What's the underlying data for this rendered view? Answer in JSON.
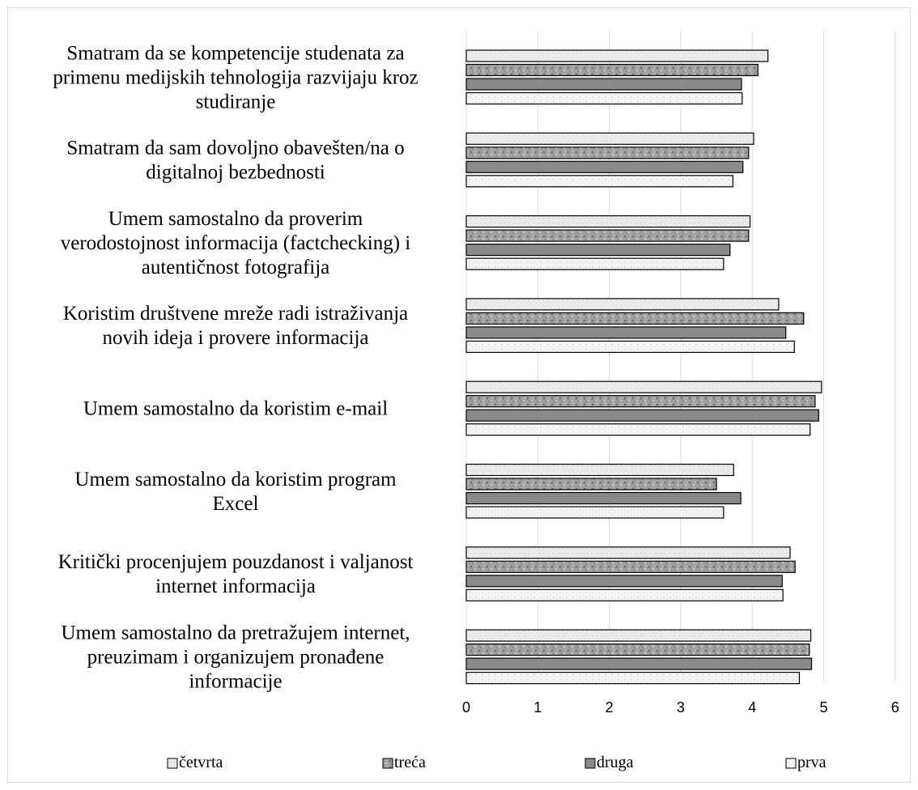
{
  "chart_data": {
    "type": "bar",
    "orientation": "horizontal",
    "categories": [
      [
        "Smatram da se kompetencije studenata za",
        "primenu medijskih tehnologija razvijaju kroz",
        "studiranje"
      ],
      [
        "Smatram da sam dovoljno obavešten/na o",
        "digitalnoj bezbednosti"
      ],
      [
        "Umem samostalno da proverim",
        "verodostojnost informacija (factchecking) i",
        "autentičnost fotografija"
      ],
      [
        "Koristim društvene mreže radi istraživanja",
        "novih ideja i provere informacija"
      ],
      [
        "Umem samostalno da koristim e-mail"
      ],
      [
        "Umem samostalno da koristim program",
        "Excel"
      ],
      [
        "Kritički procenjujem pouzdanost i valjanost",
        "internet informacija"
      ],
      [
        "Umem samostalno da pretražujem internet,",
        "preuzimam i organizujem pronađene",
        "informacije"
      ]
    ],
    "series": [
      {
        "name": "četvrta",
        "color": "#e8e8e8",
        "pattern": "light",
        "values": [
          4.22,
          4.02,
          3.97,
          4.37,
          4.97,
          3.74,
          4.53,
          4.82
        ]
      },
      {
        "name": "treća",
        "color": "#a6a6a6",
        "pattern": "textured",
        "values": [
          4.08,
          3.95,
          3.95,
          4.72,
          4.88,
          3.5,
          4.6,
          4.8
        ]
      },
      {
        "name": "druga",
        "color": "#8c8c8c",
        "pattern": "solid",
        "values": [
          3.85,
          3.87,
          3.69,
          4.47,
          4.93,
          3.84,
          4.42,
          4.83
        ]
      },
      {
        "name": "prva",
        "color": "#f2f2f2",
        "pattern": "speckled",
        "values": [
          3.86,
          3.73,
          3.6,
          4.59,
          4.81,
          3.6,
          4.43,
          4.66
        ]
      }
    ],
    "xlim": [
      0,
      6
    ],
    "xticks": [
      "0",
      "1",
      "2",
      "3",
      "4",
      "5",
      "6"
    ],
    "grid": "vertical",
    "legend": "bottom"
  }
}
